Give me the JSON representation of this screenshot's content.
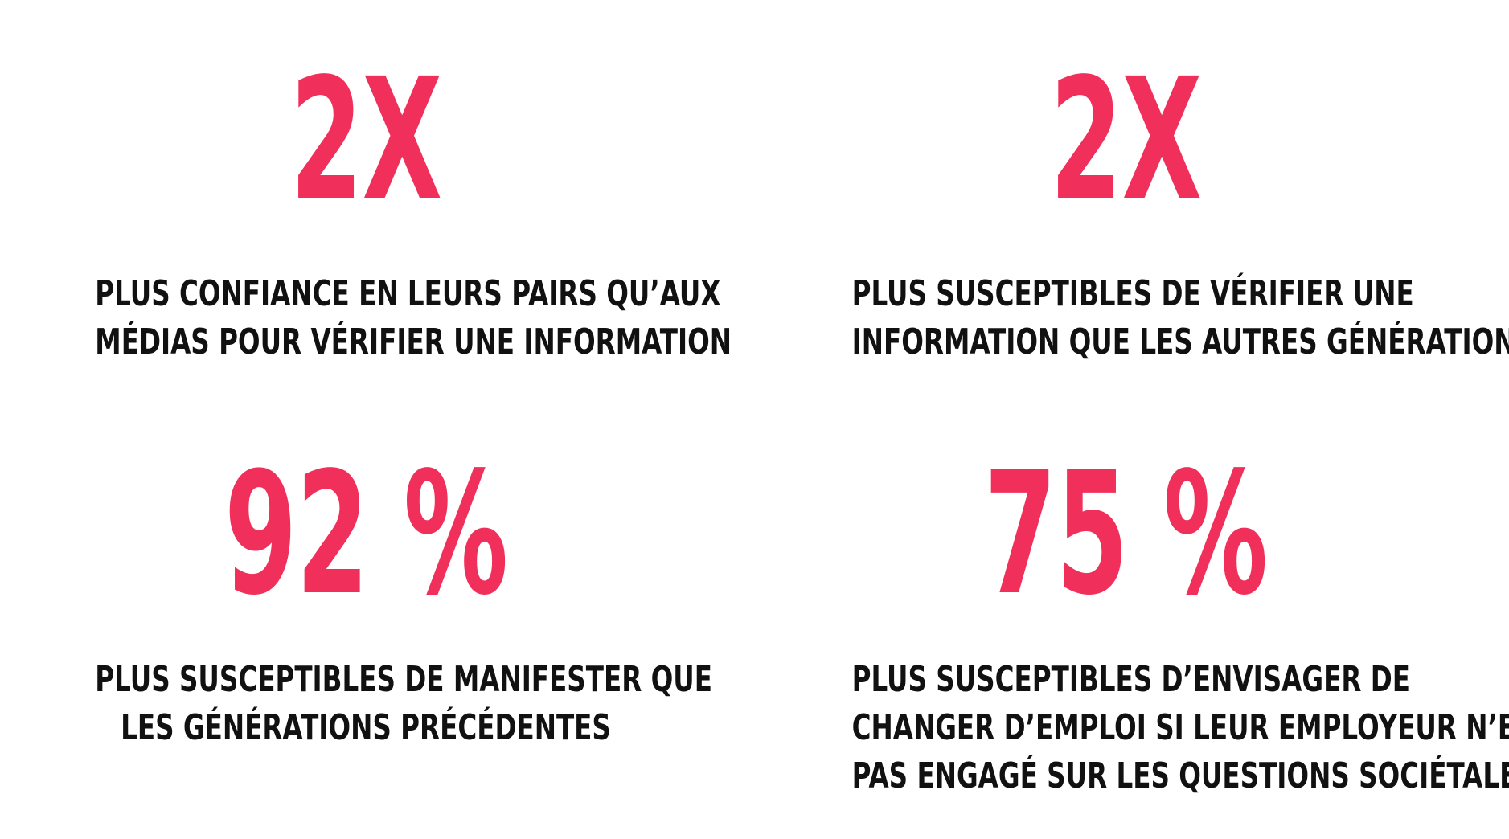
{
  "colors": {
    "accent": "#f0305a",
    "text": "#111111",
    "background": "#ffffff"
  },
  "stats": [
    {
      "value": "2X",
      "lines": [
        "PLUS CONFIANCE EN LEURS PAIRS QU’AUX",
        "MÉDIAS POUR VÉRIFIER UNE INFORMATION"
      ]
    },
    {
      "value": "2X",
      "lines": [
        "PLUS SUSCEPTIBLES DE VÉRIFIER UNE",
        "INFORMATION QUE LES AUTRES GÉNÉRATIONS"
      ]
    },
    {
      "value": "92 %",
      "lines": [
        "PLUS SUSCEPTIBLES DE MANIFESTER QUE",
        "LES GÉNÉRATIONS PRÉCÉDENTES"
      ]
    },
    {
      "value": "75 %",
      "lines": [
        "PLUS SUSCEPTIBLES D’ENVISAGER DE",
        "CHANGER D’EMPLOI SI LEUR EMPLOYEUR N’EST",
        "PAS ENGAGÉ SUR LES QUESTIONS SOCIÉTALES"
      ]
    }
  ]
}
